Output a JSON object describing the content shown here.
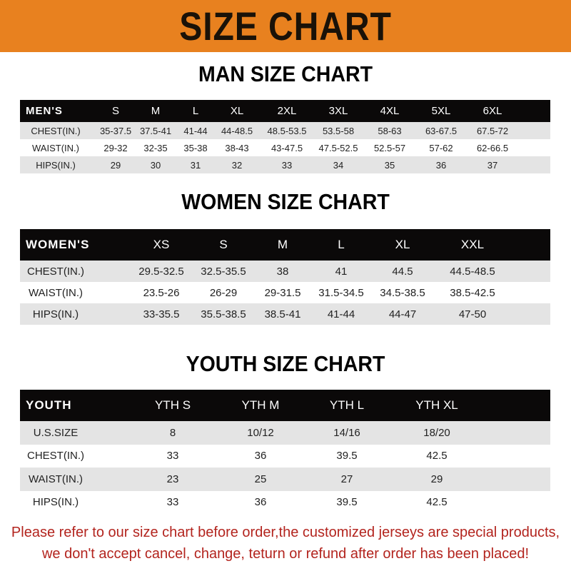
{
  "banner_title": "SIZE CHART",
  "colors": {
    "banner": "#e8811f",
    "header_row": "#0b0909",
    "stripe": "#e4e4e4",
    "notice": "#b3241e"
  },
  "men": {
    "title": "MAN SIZE CHART",
    "header": [
      "MEN'S",
      "S",
      "M",
      "L",
      "XL",
      "2XL",
      "3XL",
      "4XL",
      "5XL",
      "6XL"
    ],
    "rows": [
      [
        "CHEST(IN.)",
        "35-37.5",
        "37.5-41",
        "41-44",
        "44-48.5",
        "48.5-53.5",
        "53.5-58",
        "58-63",
        "63-67.5",
        "67.5-72"
      ],
      [
        "WAIST(IN.)",
        "29-32",
        "32-35",
        "35-38",
        "38-43",
        "43-47.5",
        "47.5-52.5",
        "52.5-57",
        "57-62",
        "62-66.5"
      ],
      [
        "HIPS(IN.)",
        "29",
        "30",
        "31",
        "32",
        "33",
        "34",
        "35",
        "36",
        "37"
      ]
    ]
  },
  "women": {
    "title": "WOMEN SIZE CHART",
    "header": [
      "WOMEN'S",
      "XS",
      "S",
      "M",
      "L",
      "XL",
      "XXL"
    ],
    "rows": [
      [
        "CHEST(IN.)",
        "29.5-32.5",
        "32.5-35.5",
        "38",
        "41",
        "44.5",
        "44.5-48.5"
      ],
      [
        "WAIST(IN.)",
        "23.5-26",
        "26-29",
        "29-31.5",
        "31.5-34.5",
        "34.5-38.5",
        "38.5-42.5"
      ],
      [
        "HIPS(IN.)",
        "33-35.5",
        "35.5-38.5",
        "38.5-41",
        "41-44",
        "44-47",
        "47-50"
      ]
    ]
  },
  "youth": {
    "title": "YOUTH SIZE CHART",
    "header": [
      "YOUTH",
      "YTH S",
      "YTH M",
      "YTH L",
      "YTH XL"
    ],
    "rows": [
      [
        "U.S.SIZE",
        "8",
        "10/12",
        "14/16",
        "18/20"
      ],
      [
        "CHEST(IN.)",
        "33",
        "36",
        "39.5",
        "42.5"
      ],
      [
        "WAIST(IN.)",
        "23",
        "25",
        "27",
        "29"
      ],
      [
        "HIPS(IN.)",
        "33",
        "36",
        "39.5",
        "42.5"
      ]
    ]
  },
  "notice": {
    "line1": "Please refer to our size chart before order,the customized jerseys are special products,",
    "line2": "we don't accept cancel, change, teturn or refund after order has been placed!"
  }
}
